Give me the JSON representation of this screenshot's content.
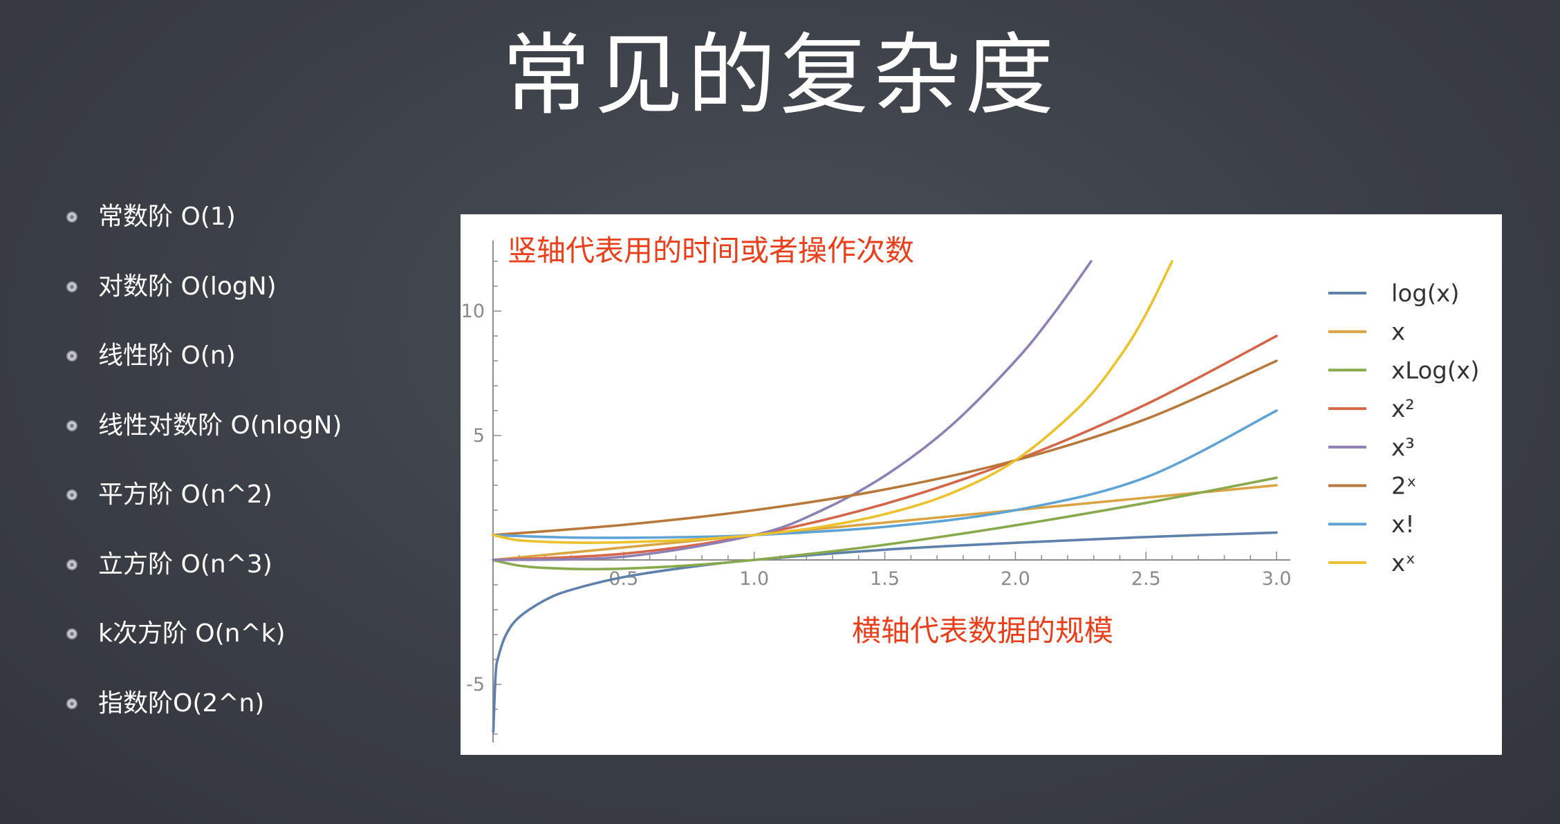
{
  "slide": {
    "title": "常见的复杂度",
    "bullets": [
      "常数阶 O(1)",
      "对数阶 O(logN)",
      "线性阶 O(n)",
      "线性对数阶 O(nlogN)",
      "平方阶 O(n^2)",
      "立方阶 O(n^3)",
      "k次方阶 O(n^k)",
      "指数阶O(2^n)"
    ]
  },
  "chart_data": {
    "type": "line",
    "title": "",
    "xlabel": "",
    "ylabel": "",
    "annotations": {
      "y_axis_note": "竖轴代表用的时间或者操作次数",
      "x_axis_note": "横轴代表数据的规模"
    },
    "xlim": [
      0,
      3.0
    ],
    "ylim": [
      -7,
      12
    ],
    "x_ticks": [
      0.5,
      1.0,
      1.5,
      2.0,
      2.5,
      3.0
    ],
    "x_tick_labels": [
      "0.5",
      "1.0",
      "1.5",
      "2.0",
      "2.5",
      "3.0"
    ],
    "y_ticks": [
      -5,
      5,
      10
    ],
    "y_tick_labels": [
      "-5",
      "5",
      "10"
    ],
    "grid": false,
    "legend_position": "right",
    "series": [
      {
        "name": "log(x)",
        "color": "#5e81ac",
        "x": [
          0.001,
          0.01,
          0.02,
          0.05,
          0.1,
          0.2,
          0.3,
          0.5,
          0.75,
          1.0,
          1.5,
          2.0,
          2.5,
          3.0
        ],
        "y": [
          -6.91,
          -4.61,
          -3.91,
          -3.0,
          -2.3,
          -1.61,
          -1.2,
          -0.69,
          -0.29,
          0.0,
          0.41,
          0.69,
          0.92,
          1.1
        ]
      },
      {
        "name": "x",
        "color": "#d9a441",
        "x": [
          0,
          0.5,
          1.0,
          1.5,
          2.0,
          2.5,
          3.0
        ],
        "y": [
          0,
          0.5,
          1.0,
          1.5,
          2.0,
          2.5,
          3.0
        ]
      },
      {
        "name": "xLog(x)",
        "color": "#88a94c",
        "x": [
          0.001,
          0.1,
          0.2,
          0.37,
          0.5,
          0.75,
          1.0,
          1.5,
          2.0,
          2.5,
          3.0
        ],
        "y": [
          -0.01,
          -0.23,
          -0.32,
          -0.37,
          -0.35,
          -0.22,
          0.0,
          0.61,
          1.39,
          2.29,
          3.3
        ]
      },
      {
        "name": "x²",
        "color": "#d5664a",
        "x": [
          0,
          0.5,
          1.0,
          1.5,
          2.0,
          2.5,
          3.0
        ],
        "y": [
          0,
          0.25,
          1.0,
          2.25,
          4.0,
          6.25,
          9.0
        ]
      },
      {
        "name": "x³",
        "color": "#8e7fb5",
        "x": [
          0,
          0.5,
          1.0,
          1.25,
          1.5,
          1.75,
          2.0,
          2.15,
          2.29
        ],
        "y": [
          0,
          0.13,
          1.0,
          1.95,
          3.38,
          5.36,
          8.0,
          9.94,
          12.0
        ]
      },
      {
        "name": "2ˣ",
        "color": "#b8783a",
        "x": [
          0,
          0.5,
          1.0,
          1.5,
          2.0,
          2.5,
          3.0
        ],
        "y": [
          1.0,
          1.41,
          2.0,
          2.83,
          4.0,
          5.66,
          8.0
        ]
      },
      {
        "name": "x!",
        "color": "#5ea3d6",
        "x": [
          0,
          0.25,
          0.5,
          0.75,
          1.0,
          1.5,
          2.0,
          2.5,
          3.0
        ],
        "y": [
          1.0,
          0.91,
          0.89,
          0.92,
          1.0,
          1.33,
          2.0,
          3.32,
          6.0
        ]
      },
      {
        "name": "xˣ",
        "color": "#ecc12e",
        "x": [
          0.001,
          0.1,
          0.25,
          0.37,
          0.5,
          0.75,
          1.0,
          1.25,
          1.5,
          1.75,
          2.0,
          2.25,
          2.4,
          2.5,
          2.6
        ],
        "y": [
          1.0,
          0.79,
          0.71,
          0.69,
          0.71,
          0.81,
          1.0,
          1.32,
          1.84,
          2.66,
          4.0,
          6.2,
          8.17,
          9.88,
          12.0
        ]
      }
    ]
  }
}
